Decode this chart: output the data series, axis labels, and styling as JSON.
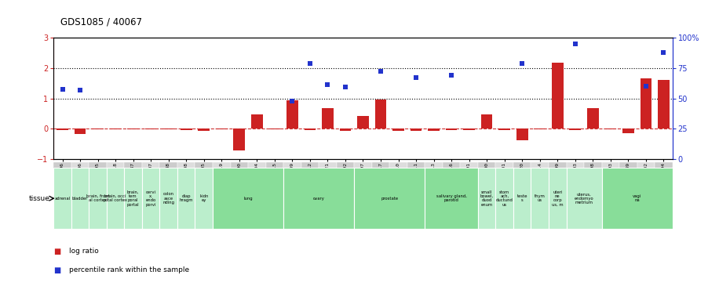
{
  "title": "GDS1085 / 40067",
  "gsm_ids": [
    "GSM39896",
    "GSM39906",
    "GSM39895",
    "GSM39918",
    "GSM39887",
    "GSM39907",
    "GSM39888",
    "GSM39908",
    "GSM39905",
    "GSM39919",
    "GSM39890",
    "GSM39904",
    "GSM39915",
    "GSM39909",
    "GSM39912",
    "GSM39921",
    "GSM39892",
    "GSM39897",
    "GSM39917",
    "GSM39910",
    "GSM39911",
    "GSM39913",
    "GSM39916",
    "GSM39891",
    "GSM39900",
    "GSM39901",
    "GSM39920",
    "GSM39914",
    "GSM39899",
    "GSM39903",
    "GSM39898",
    "GSM39893",
    "GSM39889",
    "GSM39902",
    "GSM39894"
  ],
  "log_ratio": [
    -0.03,
    -0.18,
    -0.02,
    -0.02,
    -0.02,
    -0.02,
    -0.02,
    -0.05,
    -0.08,
    -0.02,
    -0.72,
    0.47,
    -0.02,
    0.95,
    -0.05,
    0.67,
    -0.06,
    0.42,
    0.97,
    -0.07,
    -0.06,
    -0.06,
    -0.05,
    -0.05,
    0.48,
    -0.03,
    -0.37,
    -0.02,
    2.18,
    -0.05,
    0.68,
    -0.02,
    -0.15,
    1.67,
    1.6
  ],
  "percentile_rank": [
    1.3,
    1.28,
    null,
    null,
    null,
    null,
    null,
    null,
    null,
    null,
    null,
    null,
    null,
    0.9,
    2.15,
    1.45,
    1.38,
    null,
    1.9,
    null,
    1.68,
    null,
    1.75,
    null,
    null,
    null,
    2.14,
    null,
    null,
    2.78,
    null,
    null,
    null,
    1.4,
    2.5
  ],
  "tissue_groups": [
    {
      "label": "adrenal",
      "start": 0,
      "end": 0,
      "color": "#bbeecc"
    },
    {
      "label": "bladder",
      "start": 1,
      "end": 1,
      "color": "#bbeecc"
    },
    {
      "label": "brain, front\nal cortex",
      "start": 2,
      "end": 2,
      "color": "#bbeecc"
    },
    {
      "label": "brain, occi\npital cortex",
      "start": 3,
      "end": 3,
      "color": "#bbeecc"
    },
    {
      "label": "brain,\ntem\nporal\nportal",
      "start": 4,
      "end": 4,
      "color": "#bbeecc"
    },
    {
      "label": "cervi\nx,\nendo\nporvi",
      "start": 5,
      "end": 5,
      "color": "#bbeecc"
    },
    {
      "label": "colon\nasce\nnding",
      "start": 6,
      "end": 6,
      "color": "#bbeecc"
    },
    {
      "label": "diap\nhragm",
      "start": 7,
      "end": 7,
      "color": "#bbeecc"
    },
    {
      "label": "kidn\ney",
      "start": 8,
      "end": 8,
      "color": "#bbeecc"
    },
    {
      "label": "lung",
      "start": 9,
      "end": 12,
      "color": "#88dd99"
    },
    {
      "label": "ovary",
      "start": 13,
      "end": 16,
      "color": "#88dd99"
    },
    {
      "label": "prostate",
      "start": 17,
      "end": 20,
      "color": "#88dd99"
    },
    {
      "label": "salivary gland,\nparotid",
      "start": 21,
      "end": 23,
      "color": "#88dd99"
    },
    {
      "label": "small\nbowel,\nduod\nenum",
      "start": 24,
      "end": 24,
      "color": "#bbeecc"
    },
    {
      "label": "stom\nach,\nductund\nus",
      "start": 25,
      "end": 25,
      "color": "#bbeecc"
    },
    {
      "label": "teste\ns",
      "start": 26,
      "end": 26,
      "color": "#bbeecc"
    },
    {
      "label": "thym\nus",
      "start": 27,
      "end": 27,
      "color": "#bbeecc"
    },
    {
      "label": "uteri\nne\ncorp\nus, m",
      "start": 28,
      "end": 28,
      "color": "#bbeecc"
    },
    {
      "label": "uterus,\nendomyo\nmetrium",
      "start": 29,
      "end": 30,
      "color": "#bbeecc"
    },
    {
      "label": "vagi\nna",
      "start": 31,
      "end": 34,
      "color": "#88dd99"
    }
  ],
  "bar_color": "#cc2222",
  "dot_color": "#2233cc",
  "ylim_left": [
    -1,
    3
  ],
  "yticks_left": [
    -1,
    0,
    1,
    2,
    3
  ],
  "ylim_right": [
    0,
    100
  ],
  "yticks_right": [
    0,
    25,
    50,
    75,
    100
  ],
  "ytick_right_labels": [
    "0",
    "25",
    "50",
    "75",
    "100%"
  ]
}
